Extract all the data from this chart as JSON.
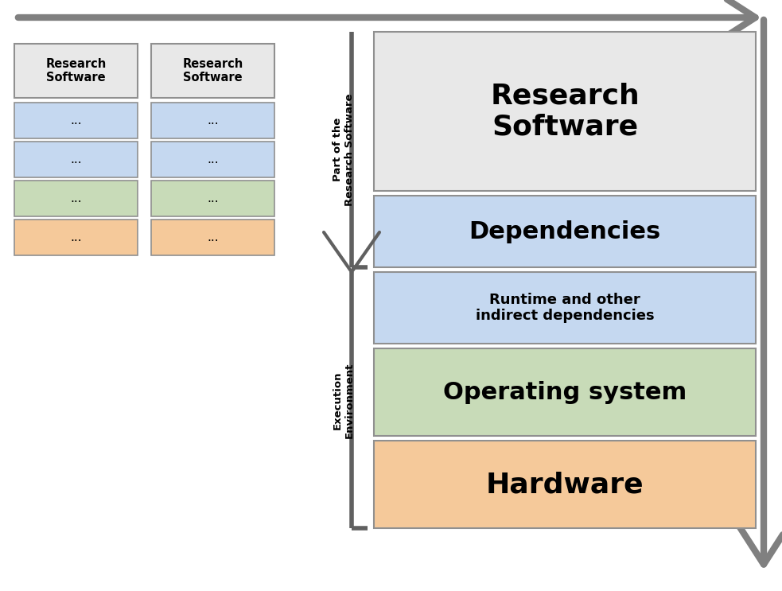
{
  "fig_width": 9.83,
  "fig_height": 7.43,
  "bg_color": "#ffffff",
  "arrow_color": "#808080",
  "rs_box_color": "#e8e8e8",
  "dep_box_color": "#c5d8f0",
  "os_box_color": "#c8dbb8",
  "hw_box_color": "#f5c99a",
  "ec_box_color": "#808080",
  "line_color": "#606060",
  "small_rs_label": "Research\nSoftware",
  "sub_colors": [
    "#c5d8f0",
    "#c5d8f0",
    "#c8dbb8",
    "#f5c99a"
  ],
  "sub_label": "...",
  "main_labels": [
    "Research\nSoftware",
    "Dependencies",
    "Runtime and other\nindirect dependencies",
    "Operating system",
    "Hardware"
  ],
  "main_fc": [
    "#e8e8e8",
    "#c5d8f0",
    "#c5d8f0",
    "#c8dbb8",
    "#f5c99a"
  ],
  "main_fs": [
    26,
    22,
    14,
    22,
    26
  ],
  "bracket1_label": "Part of the\nResearch Software",
  "bracket2_label": "Execution\nEnvironment"
}
